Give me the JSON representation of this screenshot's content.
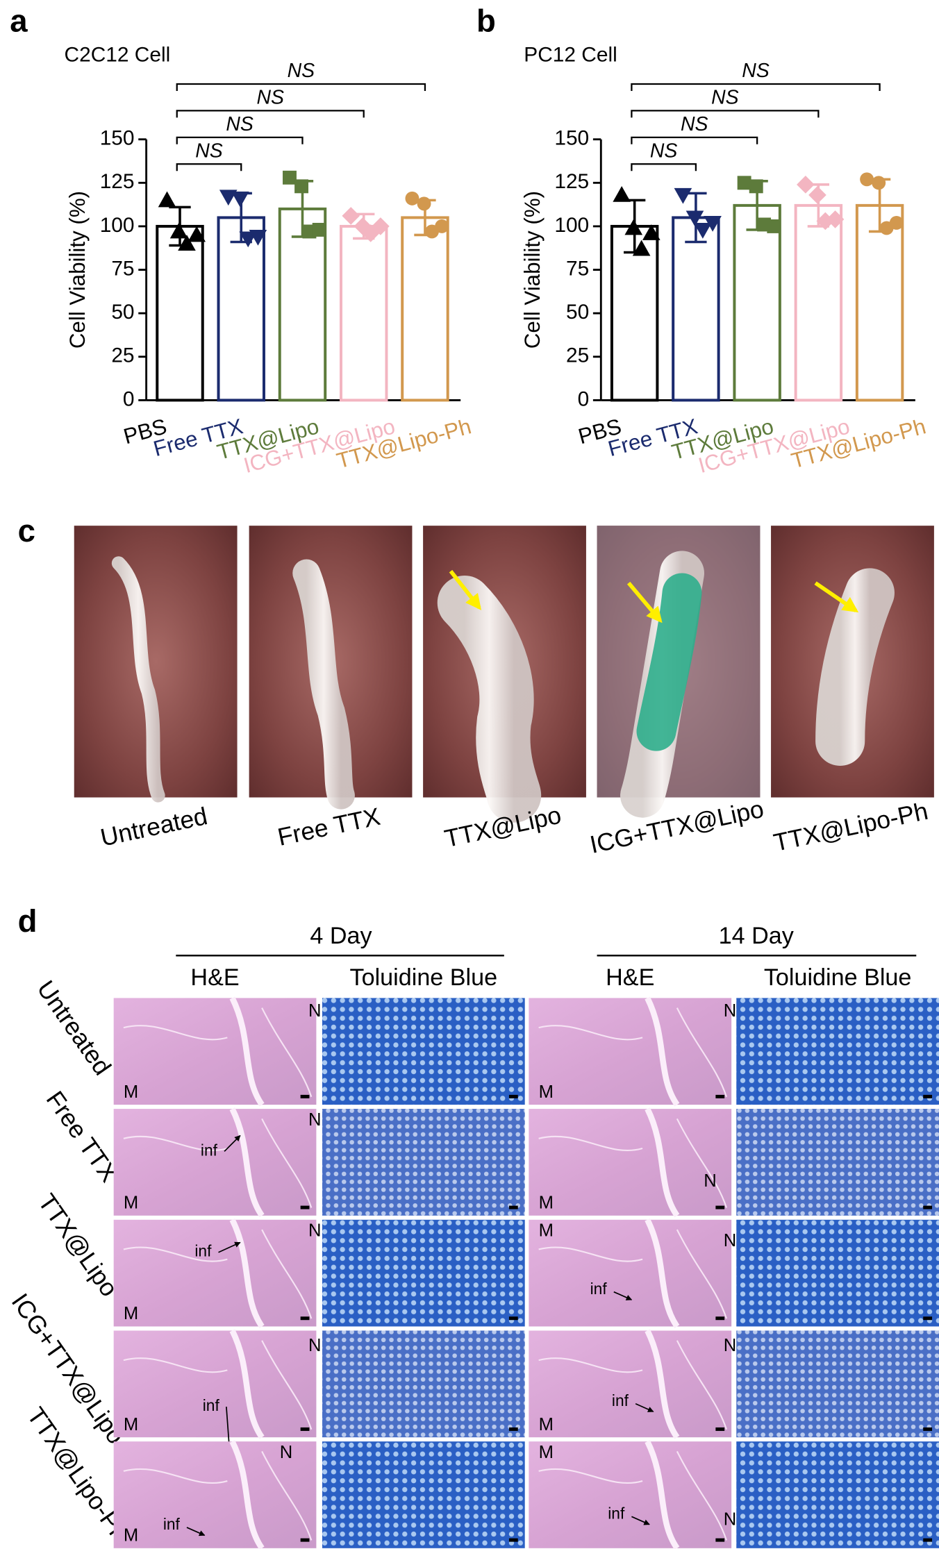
{
  "chart_data": [
    {
      "type": "bar",
      "panel": "a",
      "title": "C2C12 Cell",
      "y_label": "Cell Viability (%)",
      "categories": [
        "PBS",
        "Free TTX",
        "TTX@Lipo",
        "ICG+TTX@Lipo",
        "TTX@Lipo-Ph"
      ],
      "colors": [
        "#000000",
        "#1b2b6e",
        "#5d7b3b",
        "#f3b5c1",
        "#d2984e"
      ],
      "markers": [
        "triangle-up",
        "triangle-down",
        "square",
        "diamond",
        "circle"
      ],
      "values": [
        100,
        105,
        110,
        100,
        105
      ],
      "errors": [
        11,
        14,
        16,
        7,
        10
      ],
      "points": [
        [
          115,
          97,
          90,
          95
        ],
        [
          117,
          116,
          93,
          94
        ],
        [
          128,
          123,
          97,
          98
        ],
        [
          106,
          100,
          96,
          100
        ],
        [
          116,
          113,
          97,
          100
        ]
      ],
      "ylim": [
        0,
        150
      ],
      "yticks": [
        0,
        25,
        50,
        75,
        100,
        125,
        150
      ],
      "comparisons": [
        {
          "from": 0,
          "to": 1,
          "label": "NS"
        },
        {
          "from": 0,
          "to": 2,
          "label": "NS"
        },
        {
          "from": 0,
          "to": 3,
          "label": "NS"
        },
        {
          "from": 0,
          "to": 4,
          "label": "NS"
        }
      ]
    },
    {
      "type": "bar",
      "panel": "b",
      "title": "PC12 Cell",
      "y_label": "Cell Viability (%)",
      "categories": [
        "PBS",
        "Free TTX",
        "TTX@Lipo",
        "ICG+TTX@Lipo",
        "TTX@Lipo-Ph"
      ],
      "colors": [
        "#000000",
        "#1b2b6e",
        "#5d7b3b",
        "#f3b5c1",
        "#d2984e"
      ],
      "markers": [
        "triangle-up",
        "triangle-down",
        "square",
        "diamond",
        "circle"
      ],
      "values": [
        100,
        105,
        112,
        112,
        112
      ],
      "errors": [
        15,
        14,
        14,
        12,
        15
      ],
      "points": [
        [
          118,
          99,
          87,
          96
        ],
        [
          118,
          105,
          98,
          102
        ],
        [
          125,
          123,
          101,
          100
        ],
        [
          124,
          118,
          103,
          104
        ],
        [
          127,
          125,
          99,
          102
        ]
      ],
      "ylim": [
        0,
        150
      ],
      "yticks": [
        0,
        25,
        50,
        75,
        100,
        125,
        150
      ],
      "comparisons": [
        {
          "from": 0,
          "to": 1,
          "label": "NS"
        },
        {
          "from": 0,
          "to": 2,
          "label": "NS"
        },
        {
          "from": 0,
          "to": 3,
          "label": "NS"
        },
        {
          "from": 0,
          "to": 4,
          "label": "NS"
        }
      ]
    }
  ],
  "panel_c": {
    "panel": "c",
    "images": [
      "Untreated",
      "Free TTX",
      "TTX@Lipo",
      "ICG+TTX@Lipo",
      "TTX@Lipo-Ph"
    ]
  },
  "panel_d": {
    "panel": "d",
    "time_points": [
      {
        "label": "4 Day",
        "stains": [
          "H&E",
          "Toluidine Blue"
        ]
      },
      {
        "label": "14 Day",
        "stains": [
          "H&E",
          "Toluidine Blue"
        ]
      }
    ],
    "rows": [
      {
        "label": "Untreated",
        "he_labels": [
          [
            "N",
            "M"
          ],
          [
            "N",
            "M"
          ]
        ]
      },
      {
        "label": "Free TTX",
        "he_labels": [
          [
            "N",
            "inf",
            "M"
          ],
          [
            "N",
            "M"
          ]
        ]
      },
      {
        "label": "TTX@Lipo",
        "he_labels": [
          [
            "N",
            "inf",
            "M"
          ],
          [
            "M",
            "N",
            "inf"
          ]
        ]
      },
      {
        "label": "ICG+TTX@Lipo",
        "he_labels": [
          [
            "N",
            "inf",
            "M"
          ],
          [
            "N",
            "inf",
            "M"
          ]
        ]
      },
      {
        "label": "TTX@Lipo-Ph",
        "he_labels": [
          [
            "N",
            "inf",
            "M"
          ],
          [
            "M",
            "inf",
            "N"
          ]
        ]
      }
    ]
  }
}
